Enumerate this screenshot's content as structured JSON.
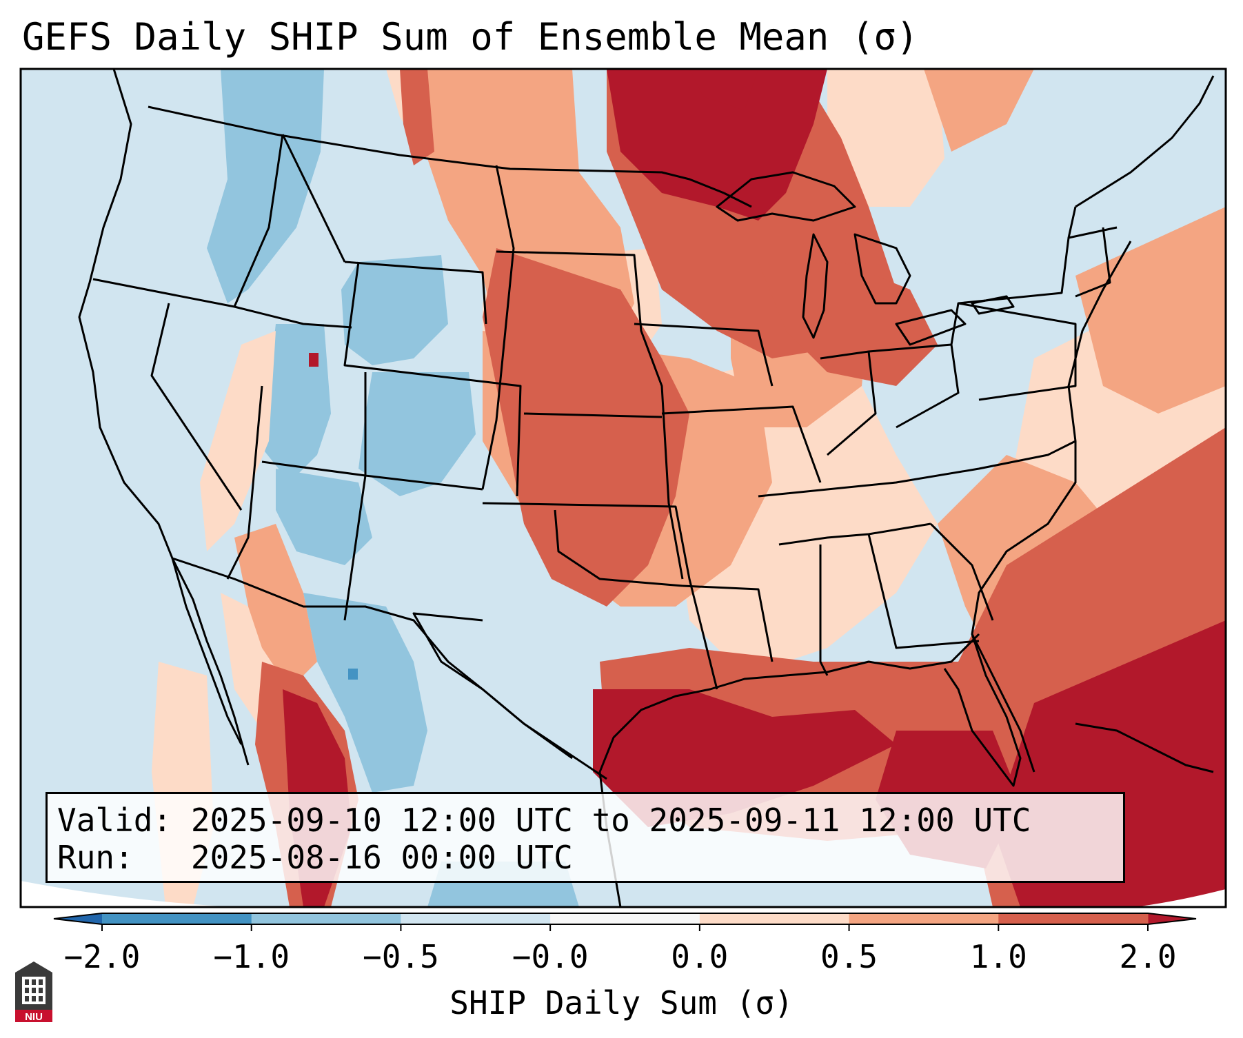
{
  "title": "GEFS Daily SHIP Sum of Ensemble Mean (σ)",
  "infobox": {
    "valid_label": "Valid:",
    "valid_value": "2025-09-10 12:00 UTC to 2025-09-11 12:00 UTC",
    "run_label": "Run:",
    "run_value": "2025-08-16 00:00 UTC"
  },
  "colorbar": {
    "label": "SHIP Daily Sum (σ)",
    "tick_labels": [
      "−2.0",
      "−1.0",
      "−0.5",
      "−0.0",
      "0.0",
      "0.5",
      "1.0",
      "2.0"
    ],
    "bins": [
      {
        "range": [
          -2.0,
          -1.0
        ],
        "color": "#4393c3"
      },
      {
        "range": [
          -1.0,
          -0.5
        ],
        "color": "#92c5de"
      },
      {
        "range": [
          -0.5,
          0.0
        ],
        "color": "#d1e5f0"
      },
      {
        "range": [
          0.0,
          0.0
        ],
        "color": "#f7f7f7"
      },
      {
        "range": [
          0.0,
          0.5
        ],
        "color": "#fddbc7"
      },
      {
        "range": [
          0.5,
          1.0
        ],
        "color": "#f4a582"
      },
      {
        "range": [
          1.0,
          2.0
        ],
        "color": "#d6604d"
      }
    ],
    "under_color": "#2166ac",
    "over_color": "#b2182b"
  },
  "logo": {
    "text": "NIU"
  },
  "map": {
    "region": "Contiguous United States, southern Canada, northern Mexico, Gulf of Mexico",
    "palette": {
      "neg_med": "#92c5de",
      "neg_low": "#d1e5f0",
      "pos_low": "#fddbc7",
      "pos_med": "#f4a582",
      "pos_high": "#d6604d",
      "pos_max": "#b2182b",
      "neg_max": "#4393c3"
    }
  }
}
